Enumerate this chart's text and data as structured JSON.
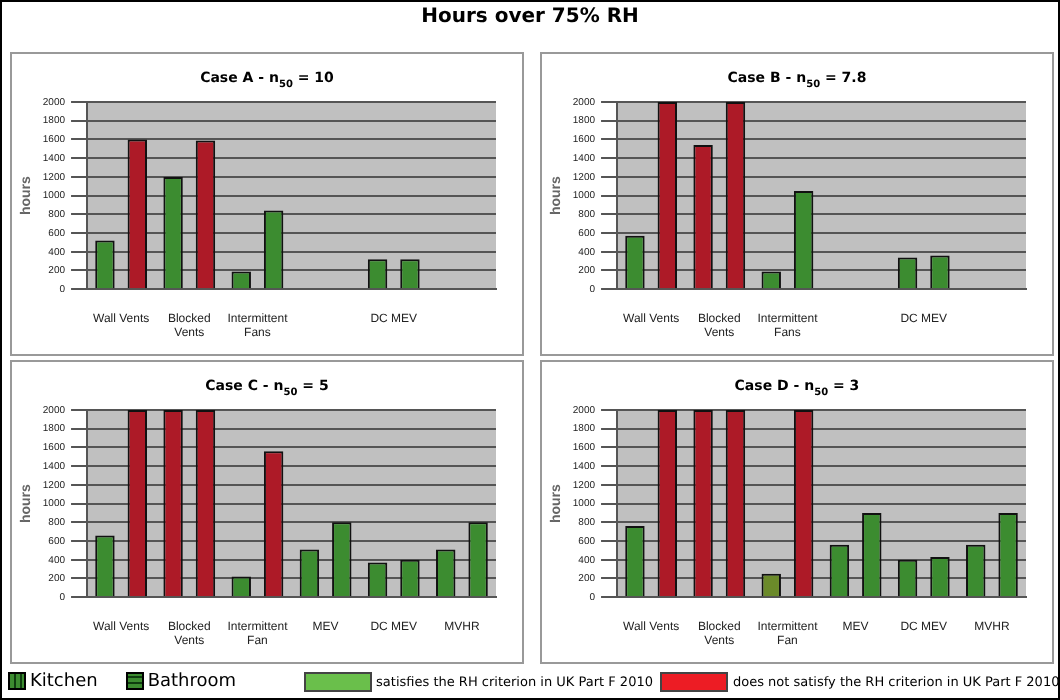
{
  "chart_data": [
    {
      "type": "bar",
      "title": "Case A - n$_{50}$ = 10",
      "ylabel": "hours",
      "annotations": [
        "Hours over 75% RH"
      ],
      "categories": [
        "Wall Vents",
        "Blocked Vents",
        "Intermittent Fans",
        null,
        "DC MEV",
        null
      ],
      "ylim": [
        0,
        2000
      ],
      "yticks": [
        0,
        200,
        400,
        600,
        800,
        1000,
        1200,
        1400,
        1600,
        1800,
        2000
      ],
      "grid": "y",
      "series": [
        {
          "values": [
            520,
            1200,
            190,
            null,
            320,
            null
          ],
          "colors": [
            "#3c8c30",
            "#3c8c30",
            "#3c8c30",
            "#3c8c30",
            "#3c8c30",
            "#3c8c30"
          ]
        },
        {
          "values": [
            1600,
            1590,
            840,
            null,
            320,
            null
          ],
          "colors": [
            "#ad1a27",
            "#ad1a27",
            "#3c8c30",
            "#3c8c30",
            "#3c8c30",
            "#3c8c30"
          ]
        }
      ]
    },
    {
      "type": "bar",
      "title": "Case B - n$_{50}$ = 7.8",
      "ylabel": "hours",
      "categories": [
        "Wall Vents",
        "Blocked Vents",
        "Intermittent Fans",
        null,
        "DC MEV",
        null
      ],
      "ylim": [
        0,
        2000
      ],
      "yticks": [
        0,
        200,
        400,
        600,
        800,
        1000,
        1200,
        1400,
        1600,
        1800,
        2000
      ],
      "grid": "y",
      "series": [
        {
          "values": [
            570,
            1540,
            190,
            null,
            340,
            null
          ],
          "colors": [
            "#3c8c30",
            "#ad1a27",
            "#3c8c30",
            "#3c8c30",
            "#3c8c30",
            "#3c8c30"
          ]
        },
        {
          "values": [
            2000,
            2000,
            1050,
            null,
            360,
            null
          ],
          "colors": [
            "#ad1a27",
            "#ad1a27",
            "#3c8c30",
            "#3c8c30",
            "#3c8c30",
            "#3c8c30"
          ]
        }
      ]
    },
    {
      "type": "bar",
      "title": "Case C - n$_{50}$ = 5",
      "ylabel": "hours",
      "categories": [
        "Wall Vents",
        "Blocked Vents",
        "Intermittent Fan",
        "MEV",
        "DC MEV",
        "MVHR"
      ],
      "ylim": [
        0,
        2000
      ],
      "yticks": [
        0,
        200,
        400,
        600,
        800,
        1000,
        1200,
        1400,
        1600,
        1800,
        2000
      ],
      "grid": "y",
      "series": [
        {
          "values": [
            660,
            2000,
            220,
            510,
            370,
            510
          ],
          "colors": [
            "#3c8c30",
            "#ad1a27",
            "#3c8c30",
            "#3c8c30",
            "#3c8c30",
            "#3c8c30"
          ]
        },
        {
          "values": [
            2000,
            2000,
            1560,
            800,
            400,
            800
          ],
          "colors": [
            "#ad1a27",
            "#ad1a27",
            "#ad1a27",
            "#3c8c30",
            "#3c8c30",
            "#3c8c30"
          ]
        }
      ]
    },
    {
      "type": "bar",
      "title": "Case D - n$_{50}$ = 3",
      "ylabel": "hours",
      "legend": "bottom",
      "annotations": [
        "satisfies the RH criterion in UK Part F 2010",
        "does not satisfy the RH criterion in UK Part F 2010"
      ],
      "categories": [
        "Wall Vents",
        "Blocked Vents",
        "Intermittent Fan",
        "MEV",
        "DC MEV",
        "MVHR"
      ],
      "ylim": [
        0,
        2000
      ],
      "yticks": [
        0,
        200,
        400,
        600,
        800,
        1000,
        1200,
        1400,
        1600,
        1800,
        2000
      ],
      "grid": "y",
      "series": [
        {
          "name": "Kitchen",
          "color": "#3c8c30",
          "values": [
            760,
            2000,
            250,
            560,
            400,
            560
          ],
          "colors": [
            "#3c8c30",
            "#ad1a27",
            "#6b8a2a",
            "#3c8c30",
            "#3c8c30",
            "#3c8c30"
          ]
        },
        {
          "name": "Bathroom",
          "color": "#3c8c30",
          "values": [
            2000,
            2000,
            2000,
            900,
            430,
            900
          ],
          "colors": [
            "#ad1a27",
            "#ad1a27",
            "#ad1a27",
            "#3c8c30",
            "#3c8c30",
            "#3c8c30"
          ]
        }
      ]
    }
  ]
}
